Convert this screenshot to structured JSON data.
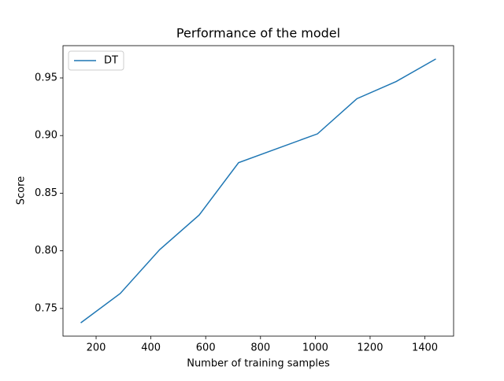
{
  "chart_data": {
    "type": "line",
    "title": "Performance of the model",
    "x_label": "Number of training samples",
    "y_label": "Score",
    "x": [
      144,
      288,
      432,
      576,
      720,
      864,
      1008,
      1152,
      1296,
      1440
    ],
    "series": [
      {
        "name": "DT",
        "color": "#1f77b4",
        "values": [
          0.7375,
          0.763,
          0.801,
          0.831,
          0.8765,
          0.889,
          0.9015,
          0.932,
          0.947,
          0.9665
        ]
      }
    ],
    "xlim": [
      79.2,
      1504.8
    ],
    "xticks": [
      200,
      400,
      600,
      800,
      1000,
      1200,
      1400
    ],
    "ylim": [
      0.726,
      0.978
    ],
    "yticks": [
      0.75,
      {
        "value": 0.8,
        "label": "0.80"
      },
      0.85,
      {
        "value": 0.9,
        "label": "0.90"
      },
      0.95
    ],
    "legend": "upper left",
    "grid": false
  }
}
